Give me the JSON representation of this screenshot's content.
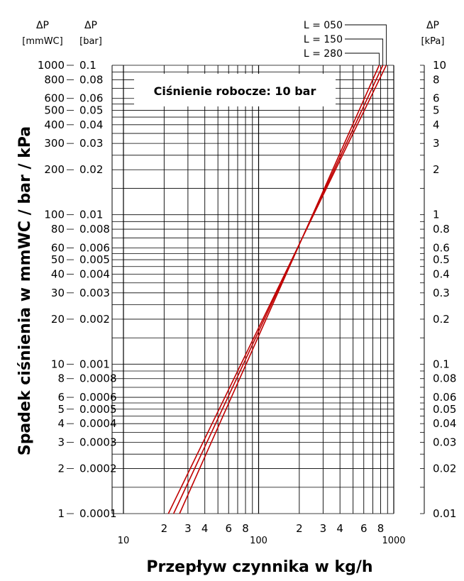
{
  "chart_data": {
    "type": "line",
    "x_scale": "log",
    "y_scale": "log",
    "xlim": [
      10,
      1000
    ],
    "ylim_mmWC": [
      1,
      1000
    ],
    "grid": true,
    "xlabel": "Przepływ czynnika w kg/h",
    "ylabel": "Spadek ciśnienia w mmWC / bar / kPa",
    "pressure_label": "Ciśnienie robocze: 10 bar",
    "headers": {
      "mmwc": {
        "symbol": "ΔP",
        "unit": "[mmWC]"
      },
      "bar": {
        "symbol": "ΔP",
        "unit": "[bar]"
      },
      "kpa": {
        "symbol": "ΔP",
        "unit": "[kPa]"
      }
    },
    "x_tick_labels": [
      {
        "x": 10,
        "label": "10",
        "major": true
      },
      {
        "x": 20,
        "label": "2",
        "major": false
      },
      {
        "x": 30,
        "label": "3",
        "major": false
      },
      {
        "x": 40,
        "label": "4",
        "major": false
      },
      {
        "x": 60,
        "label": "6",
        "major": false
      },
      {
        "x": 80,
        "label": "8",
        "major": false
      },
      {
        "x": 100,
        "label": "100",
        "major": true
      },
      {
        "x": 200,
        "label": "2",
        "major": false
      },
      {
        "x": 300,
        "label": "3",
        "major": false
      },
      {
        "x": 400,
        "label": "4",
        "major": false
      },
      {
        "x": 600,
        "label": "6",
        "major": false
      },
      {
        "x": 800,
        "label": "8",
        "major": false
      },
      {
        "x": 1000,
        "label": "1000",
        "major": true
      }
    ],
    "y_tick_labels": [
      {
        "mmwc": 1000,
        "left": "1000",
        "bar": "0.1",
        "kpa": "10"
      },
      {
        "mmwc": 800,
        "left": "800",
        "bar": "0.08",
        "kpa": "8"
      },
      {
        "mmwc": 600,
        "left": "600",
        "bar": "0.06",
        "kpa": "6"
      },
      {
        "mmwc": 500,
        "left": "500",
        "bar": "0.05",
        "kpa": "5"
      },
      {
        "mmwc": 400,
        "left": "400",
        "bar": "0.04",
        "kpa": "4"
      },
      {
        "mmwc": 300,
        "left": "300",
        "bar": "0.03",
        "kpa": "3"
      },
      {
        "mmwc": 200,
        "left": "200",
        "bar": "0.02",
        "kpa": "2"
      },
      {
        "mmwc": 100,
        "left": "100",
        "bar": "0.01",
        "kpa": "1"
      },
      {
        "mmwc": 80,
        "left": "80",
        "bar": "0.008",
        "kpa": "0.8"
      },
      {
        "mmwc": 60,
        "left": "60",
        "bar": "0.006",
        "kpa": "0.6"
      },
      {
        "mmwc": 50,
        "left": "50",
        "bar": "0.005",
        "kpa": "0.5"
      },
      {
        "mmwc": 40,
        "left": "40",
        "bar": "0.004",
        "kpa": "0.4"
      },
      {
        "mmwc": 30,
        "left": "30",
        "bar": "0.003",
        "kpa": "0.3"
      },
      {
        "mmwc": 20,
        "left": "20",
        "bar": "0.002",
        "kpa": "0.2"
      },
      {
        "mmwc": 10,
        "left": "10",
        "bar": "0.001",
        "kpa": "0.1"
      },
      {
        "mmwc": 8,
        "left": "8",
        "bar": "0.0008",
        "kpa": "0.08"
      },
      {
        "mmwc": 6,
        "left": "6",
        "bar": "0.0006",
        "kpa": "0.06"
      },
      {
        "mmwc": 5,
        "left": "5",
        "bar": "0.0005",
        "kpa": "0.05"
      },
      {
        "mmwc": 4,
        "left": "4",
        "bar": "0.0004",
        "kpa": "0.04"
      },
      {
        "mmwc": 3,
        "left": "3",
        "bar": "0.0003",
        "kpa": "0.03"
      },
      {
        "mmwc": 2,
        "left": "2",
        "bar": "0.0002",
        "kpa": "0.02"
      },
      {
        "mmwc": 1,
        "left": "1",
        "bar": "0.0001",
        "kpa": "0.01"
      }
    ],
    "line_color": "#c00000",
    "series": [
      {
        "name": "L = 050",
        "x": [
          880,
          21.5
        ],
        "y": [
          1000,
          1
        ]
      },
      {
        "name": "L = 150",
        "x": [
          830,
          23.5
        ],
        "y": [
          1000,
          1
        ]
      },
      {
        "name": "L = 280",
        "x": [
          780,
          26
        ],
        "y": [
          1000,
          1
        ]
      }
    ]
  }
}
